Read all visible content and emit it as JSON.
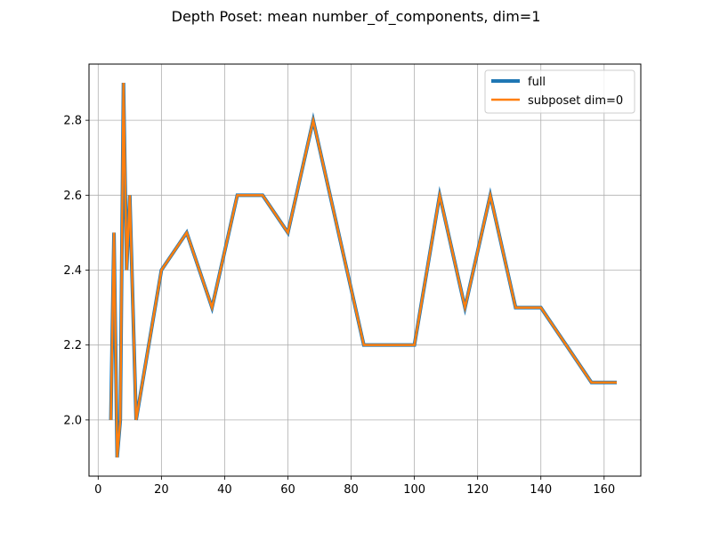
{
  "chart_data": {
    "type": "line",
    "title": "Depth Poset: mean number_of_components, dim=1",
    "xlabel": "",
    "ylabel": "",
    "xlim": [
      -2.9,
      171.6
    ],
    "ylim": [
      1.85,
      2.95
    ],
    "x_ticks": [
      0,
      20,
      40,
      60,
      80,
      100,
      120,
      140,
      160
    ],
    "y_ticks": [
      2.0,
      2.2,
      2.4,
      2.6,
      2.8
    ],
    "grid": true,
    "legend_position": "top-right",
    "series": [
      {
        "name": "full",
        "color": "#1f77b4",
        "x": [
          4,
          5,
          6,
          7,
          8,
          9,
          10,
          12,
          20,
          28,
          36,
          44,
          52,
          60,
          68,
          76,
          84,
          92,
          100,
          108,
          116,
          124,
          132,
          140,
          148,
          156,
          164
        ],
        "y": [
          2.0,
          2.5,
          1.9,
          2.0,
          2.9,
          2.4,
          2.6,
          2.0,
          2.4,
          2.5,
          2.3,
          2.6,
          2.6,
          2.5,
          2.8,
          2.5,
          2.2,
          2.2,
          2.2,
          2.6,
          2.3,
          2.6,
          2.3,
          2.3,
          2.2,
          2.1,
          2.1
        ]
      },
      {
        "name": "subposet dim=0",
        "color": "#ff7f0e",
        "x": [
          4,
          5,
          6,
          7,
          8,
          9,
          10,
          12,
          20,
          28,
          36,
          44,
          52,
          60,
          68,
          76,
          84,
          92,
          100,
          108,
          116,
          124,
          132,
          140,
          148,
          156,
          164
        ],
        "y": [
          2.0,
          2.5,
          1.9,
          2.0,
          2.9,
          2.4,
          2.6,
          2.0,
          2.4,
          2.5,
          2.3,
          2.6,
          2.6,
          2.5,
          2.8,
          2.5,
          2.2,
          2.2,
          2.2,
          2.6,
          2.3,
          2.6,
          2.3,
          2.3,
          2.2,
          2.1,
          2.1
        ]
      }
    ]
  }
}
